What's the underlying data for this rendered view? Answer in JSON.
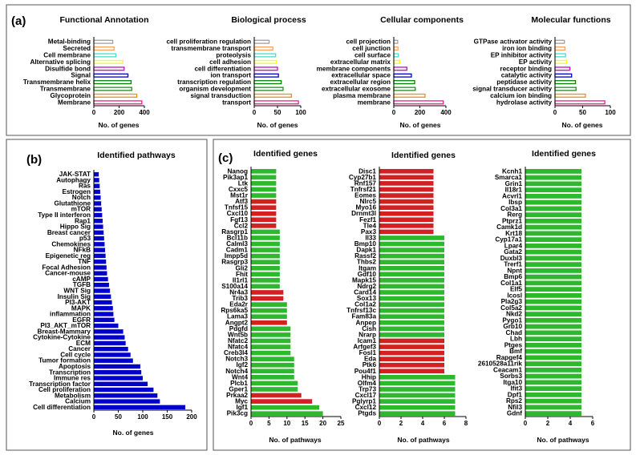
{
  "figure": {
    "panels": [
      {
        "label": "(a)"
      },
      {
        "label": "(b)"
      },
      {
        "label": "(c)"
      }
    ]
  },
  "chart_data": [
    {
      "type": "bar",
      "orientation": "horizontal",
      "title": "Functional Annotation",
      "xlabel": "No. of genes",
      "xlim": [
        0,
        400
      ],
      "xticks": [
        0,
        200,
        400
      ],
      "categories": [
        "Metal-binding",
        "Secreted",
        "Cell membrane",
        "Alternative splicing",
        "Disulfide bond",
        "Signal",
        "Transmembrane helix",
        "Transmembrane",
        "Glycoprotein",
        "Membrane"
      ],
      "values": [
        150,
        160,
        175,
        230,
        240,
        270,
        295,
        300,
        340,
        380
      ],
      "colors": [
        "#a0a0a0",
        "#f4a460",
        "#40e0d0",
        "#ffff00",
        "#d000d0",
        "#0000cd",
        "#008000",
        "#228b22",
        "#ff8c00",
        "#ff1493"
      ],
      "bar_style": "outlined"
    },
    {
      "type": "bar",
      "orientation": "horizontal",
      "title": "Biological process",
      "xlabel": "No. of genes",
      "xlim": [
        0,
        100
      ],
      "xticks": [
        0,
        50,
        100
      ],
      "categories": [
        "cell proliferation regulation",
        "transmembrane transport",
        "proteolysis",
        "cell adhesion",
        "cell differentiation",
        "ion transport",
        "transcription regulation",
        "organism development",
        "signal transduction",
        "transport"
      ],
      "values": [
        32,
        40,
        46,
        48,
        50,
        52,
        58,
        62,
        80,
        95
      ],
      "colors": [
        "#a0a0a0",
        "#f4a460",
        "#40e0d0",
        "#ffff00",
        "#d000d0",
        "#0000cd",
        "#008000",
        "#228b22",
        "#ff8c00",
        "#ff1493"
      ],
      "bar_style": "outlined"
    },
    {
      "type": "bar",
      "orientation": "horizontal",
      "title": "Cellular components",
      "xlabel": "No. of genes",
      "xlim": [
        0,
        400
      ],
      "xticks": [
        0,
        200,
        400
      ],
      "categories": [
        "cell projection",
        "cell junction",
        "cell surface",
        "extracellular matrix",
        "membrane components",
        "extracellular space",
        "extracellular region",
        "extracellular exosome",
        "plasma membrane",
        "membrane"
      ],
      "values": [
        30,
        32,
        35,
        45,
        100,
        135,
        160,
        165,
        240,
        380
      ],
      "colors": [
        "#a0a0a0",
        "#f4a460",
        "#40e0d0",
        "#ffff00",
        "#d000d0",
        "#0000cd",
        "#008000",
        "#228b22",
        "#ff8c00",
        "#ff1493"
      ],
      "bar_style": "outlined"
    },
    {
      "type": "bar",
      "orientation": "horizontal",
      "title": "Molecular functions",
      "xlabel": "No. of genes",
      "xlim": [
        0,
        100
      ],
      "xticks": [
        0,
        50,
        100
      ],
      "categories": [
        "GTPase activator activity",
        "iron ion binding",
        "EP inhibitor activity",
        "EP activity",
        "receptor binding",
        "catalytic activity",
        "peptidase activity",
        "signal transducer activity",
        "calcium ion binding",
        "hydrolase activity"
      ],
      "values": [
        17,
        18,
        19,
        21,
        27,
        30,
        37,
        38,
        55,
        90
      ],
      "colors": [
        "#a0a0a0",
        "#f4a460",
        "#40e0d0",
        "#ffff00",
        "#d000d0",
        "#0000cd",
        "#008000",
        "#228b22",
        "#ff8c00",
        "#ff1493"
      ],
      "bar_style": "outlined"
    },
    {
      "type": "bar",
      "orientation": "horizontal",
      "title": "Identified pathways",
      "xlabel": "No. of genes",
      "xlim": [
        0,
        200
      ],
      "xticks": [
        0,
        50,
        100,
        150,
        200
      ],
      "categories": [
        "JAK-STAT",
        "Autophagy",
        "Ras",
        "Estrogen",
        "Notch",
        "Glutathione",
        "mTOR",
        "Type II interferon",
        "Rap1",
        "Hippo Sig",
        "Breast cancer",
        "p53",
        "Chemokines",
        "NFkB",
        "Epigenetic reg",
        "TNF",
        "Focal Adhesion",
        "Cancer-mouse",
        "cAMP",
        "TGFB",
        "WNT Sig",
        "Insulin Sig",
        "PI3-AKT",
        "MAPK",
        "inflammation",
        "EGFR",
        "PI3_AKT_mTOR",
        "Breast-Mammary",
        "Cytokine-Cytokine",
        "ECM",
        "Cancer",
        "Cell cycle",
        "Tumor formation",
        "Apoptosis",
        "Transcription",
        "Immune res",
        "Transcription factor",
        "Cell proliferation",
        "Metabolism",
        "Calcium",
        "Cell differentiation"
      ],
      "values": [
        10,
        11,
        12,
        13,
        14,
        15,
        16,
        17,
        18,
        19,
        20,
        21,
        22,
        23,
        24,
        25,
        26,
        27,
        29,
        31,
        33,
        35,
        37,
        39,
        40,
        42,
        50,
        60,
        63,
        65,
        70,
        75,
        80,
        95,
        97,
        100,
        110,
        122,
        130,
        135,
        187
      ],
      "colors": [
        "#0000cd"
      ],
      "bar_style": "filled"
    },
    {
      "type": "bar",
      "orientation": "horizontal",
      "title": "Identified genes",
      "xlabel": "No. of pathways",
      "xlim": [
        0,
        25
      ],
      "xticks": [
        0,
        5,
        10,
        15,
        20,
        25
      ],
      "categories": [
        "Nanog",
        "Pik3ap1",
        "Ltk",
        "Cxxc5",
        "Mst1r",
        "Atf3",
        "Tnfsf15",
        "Cxcl10",
        "Fgf13",
        "Ccl2",
        "Rasgrp1",
        "Bcl11b",
        "Calml3",
        "Cadm1",
        "Impp5d",
        "Rasgrp3",
        "Gli2",
        "Fhit",
        "Il1rl1",
        "S100a14",
        "Nr4a3",
        "Trib3",
        "Eda2r",
        "Rps6ka5",
        "Lama3",
        "Angpt2",
        "Pdgfd",
        "Wnt5b",
        "Nfatc2",
        "Nfatc4",
        "Creb3l4",
        "Notch3",
        "Igf2",
        "Notch4",
        "Wnt4",
        "Plcb1",
        "Gper1",
        "Prkaa2",
        "Myc",
        "Igf1",
        "Pik3cg"
      ],
      "values": [
        7,
        7,
        7,
        7,
        7,
        7,
        7,
        7,
        7,
        7,
        8,
        8,
        8,
        8,
        8,
        8,
        8,
        8,
        8,
        8,
        9,
        9,
        10,
        10,
        10,
        10,
        11,
        11,
        11,
        11,
        11,
        12,
        12,
        12,
        12,
        13,
        13,
        14,
        17,
        19,
        20
      ],
      "highlight": [
        "green",
        "green",
        "green",
        "green",
        "green",
        "red",
        "red",
        "red",
        "red",
        "red",
        "green",
        "green",
        "green",
        "green",
        "green",
        "green",
        "green",
        "green",
        "green",
        "green",
        "red",
        "red",
        "green",
        "green",
        "green",
        "red",
        "green",
        "green",
        "green",
        "green",
        "green",
        "green",
        "green",
        "green",
        "green",
        "green",
        "green",
        "red",
        "red",
        "green",
        "green"
      ],
      "colors": {
        "green": "#2db82d",
        "red": "#d42020"
      },
      "bar_style": "filled"
    },
    {
      "type": "bar",
      "orientation": "horizontal",
      "title": "Identified genes",
      "xlabel": "No. of pathways",
      "xlim": [
        0,
        8
      ],
      "xticks": [
        0,
        2,
        4,
        6,
        8
      ],
      "categories": [
        "Disc1",
        "Cyp27b1",
        "Rnf157",
        "Tnfrsf21",
        "Eomes",
        "Nlrc5",
        "Myo16",
        "Drnmt3l",
        "Fezf1",
        "Tle4",
        "Pax3",
        "Il33",
        "Bmp10",
        "Dapk1",
        "Rassf2",
        "Thbs2",
        "Itgam",
        "Gdf10",
        "Mapk15",
        "Ndrg2",
        "Card14",
        "Sox13",
        "Col1a2",
        "Tnfrsf13c",
        "Fam83a",
        "Anpep",
        "Cish",
        "Nrarp",
        "Icam1",
        "Arfgef3",
        "Fosl1",
        "Eda",
        "Ptk6",
        "Pou4f1",
        "Hhip",
        "Olfm4",
        "Trp73",
        "Cxcl17",
        "Pglyrp1",
        "Cxcl12",
        "Ptgds"
      ],
      "values": [
        5,
        5,
        5,
        5,
        5,
        5,
        5,
        5,
        5,
        5,
        5,
        6,
        6,
        6,
        6,
        6,
        6,
        6,
        6,
        6,
        6,
        6,
        6,
        6,
        6,
        6,
        6,
        6,
        6,
        6,
        6,
        6,
        6,
        6,
        7,
        7,
        7,
        7,
        7,
        7,
        7
      ],
      "highlight": [
        "red",
        "red",
        "red",
        "red",
        "red",
        "red",
        "red",
        "red",
        "red",
        "red",
        "red",
        "green",
        "green",
        "green",
        "green",
        "green",
        "green",
        "green",
        "green",
        "green",
        "green",
        "green",
        "green",
        "green",
        "green",
        "green",
        "green",
        "green",
        "red",
        "red",
        "red",
        "red",
        "red",
        "red",
        "green",
        "green",
        "green",
        "green",
        "green",
        "green",
        "green"
      ],
      "colors": {
        "green": "#2db82d",
        "red": "#d42020"
      },
      "bar_style": "filled"
    },
    {
      "type": "bar",
      "orientation": "horizontal",
      "title": "Identified genes",
      "xlabel": "No. of pathways",
      "xlim": [
        0,
        6
      ],
      "xticks": [
        0,
        2,
        4,
        6
      ],
      "categories": [
        "Kcnh1",
        "Smarca1",
        "Grin1",
        "Il18r1",
        "Acvrl1",
        "Ibsp",
        "Col3a1",
        "Rerg",
        "Ptprz1",
        "Camk1d",
        "Krt18",
        "Cyp17a1",
        "Lpar4",
        "Gata2",
        "Duxbl3",
        "Trerf1",
        "Npnt",
        "Bmp6",
        "Col1a1",
        "Elf5",
        "Icosl",
        "Pla2g3",
        "Col5a2",
        "Nkd2",
        "Pygo1",
        "Grb10",
        "Chad",
        "Lbh",
        "Ptges",
        "Bmf",
        "Rapgef4",
        "2610528a11rik",
        "Ceacam1",
        "Sorbs3",
        "Itga10",
        "Ifit3",
        "Dpf1",
        "Rps2",
        "Nfil3",
        "Gdnf"
      ],
      "values": [
        5,
        5,
        5,
        5,
        5,
        5,
        5,
        5,
        5,
        5,
        5,
        5,
        5,
        5,
        5,
        5,
        5,
        5,
        5,
        5,
        5,
        5,
        5,
        5,
        5,
        5,
        5,
        5,
        5,
        5,
        5,
        5,
        5,
        5,
        5,
        5,
        5,
        5,
        5,
        5
      ],
      "highlight": [
        "green"
      ],
      "colors": {
        "green": "#2db82d"
      },
      "bar_style": "filled"
    }
  ]
}
